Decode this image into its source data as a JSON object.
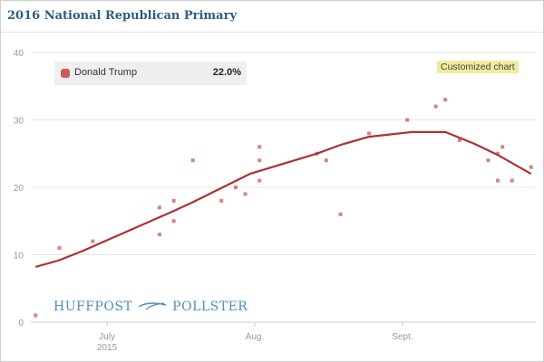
{
  "header": {
    "title": "2016 National Republican Primary"
  },
  "legend": {
    "series_name": "Donald Trump",
    "value": "22.0%",
    "color": "#c85a5a"
  },
  "badge": {
    "label": "Customized chart"
  },
  "branding": {
    "left": "HUFFPOST",
    "right": "POLLSTER",
    "color": "#4a8fc0"
  },
  "chart_data": {
    "type": "scatter",
    "series": [
      {
        "name": "Donald Trump",
        "color": "#c85a5a",
        "trend_color": "#b03030",
        "points": [
          {
            "x": "2015-06-16",
            "y": 1
          },
          {
            "x": "2015-06-21",
            "y": 11
          },
          {
            "x": "2015-06-28",
            "y": 12
          },
          {
            "x": "2015-07-12",
            "y": 17
          },
          {
            "x": "2015-07-12",
            "y": 13
          },
          {
            "x": "2015-07-15",
            "y": 18
          },
          {
            "x": "2015-07-15",
            "y": 15
          },
          {
            "x": "2015-07-19",
            "y": 24
          },
          {
            "x": "2015-07-25",
            "y": 18
          },
          {
            "x": "2015-07-28",
            "y": 20
          },
          {
            "x": "2015-07-30",
            "y": 19
          },
          {
            "x": "2015-08-02",
            "y": 26
          },
          {
            "x": "2015-08-02",
            "y": 24
          },
          {
            "x": "2015-08-02",
            "y": 21
          },
          {
            "x": "2015-08-14",
            "y": 25
          },
          {
            "x": "2015-08-16",
            "y": 24
          },
          {
            "x": "2015-08-19",
            "y": 16
          },
          {
            "x": "2015-08-25",
            "y": 28
          },
          {
            "x": "2015-09-02",
            "y": 30
          },
          {
            "x": "2015-09-08",
            "y": 32
          },
          {
            "x": "2015-09-10",
            "y": 33
          },
          {
            "x": "2015-09-13",
            "y": 27
          },
          {
            "x": "2015-09-19",
            "y": 24
          },
          {
            "x": "2015-09-21",
            "y": 21
          },
          {
            "x": "2015-09-21",
            "y": 25
          },
          {
            "x": "2015-09-22",
            "y": 26
          },
          {
            "x": "2015-09-24",
            "y": 21
          },
          {
            "x": "2015-09-28",
            "y": 23
          }
        ],
        "trend": [
          {
            "x": "2015-06-16",
            "y": 8.2
          },
          {
            "x": "2015-06-21",
            "y": 9.2
          },
          {
            "x": "2015-06-26",
            "y": 10.6
          },
          {
            "x": "2015-07-15",
            "y": 16.5
          },
          {
            "x": "2015-07-19",
            "y": 17.8
          },
          {
            "x": "2015-07-31",
            "y": 22.0
          },
          {
            "x": "2015-08-14",
            "y": 25.0
          },
          {
            "x": "2015-08-19",
            "y": 26.3
          },
          {
            "x": "2015-08-25",
            "y": 27.5
          },
          {
            "x": "2015-09-03",
            "y": 28.2
          },
          {
            "x": "2015-09-10",
            "y": 28.2
          },
          {
            "x": "2015-09-16",
            "y": 26.5
          },
          {
            "x": "2015-09-21",
            "y": 24.8
          },
          {
            "x": "2015-09-28",
            "y": 22.0
          }
        ]
      }
    ],
    "x_range": [
      "2015-06-15",
      "2015-09-29"
    ],
    "x_ticks": [
      {
        "date": "2015-07-01",
        "label": "July",
        "sublabel": "2015"
      },
      {
        "date": "2015-08-01",
        "label": "Aug.",
        "sublabel": ""
      },
      {
        "date": "2015-09-01",
        "label": "Sept.",
        "sublabel": ""
      }
    ],
    "ylim": [
      0,
      40
    ],
    "y_ticks": [
      0,
      10,
      20,
      30,
      40
    ],
    "grid": true,
    "legend_position": "top-left"
  }
}
